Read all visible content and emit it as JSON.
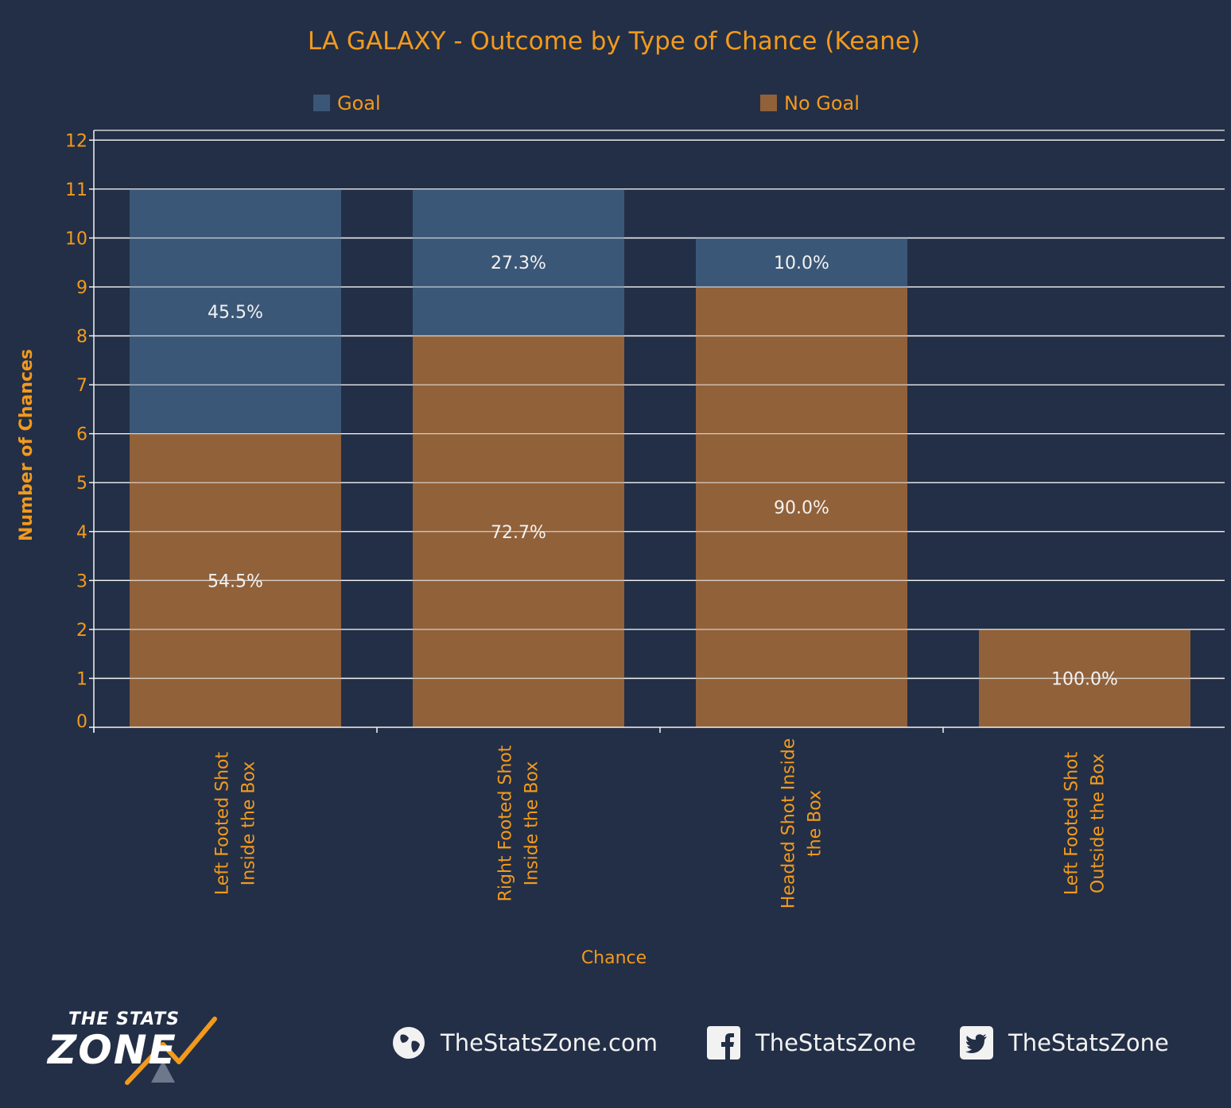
{
  "chart_data": {
    "type": "bar",
    "stacked": true,
    "title": "LA GALAXY - Outcome by Type of Chance (Keane)",
    "xlabel": "Chance",
    "ylabel": "Number of Chances",
    "ylim": [
      0,
      12
    ],
    "yticks": [
      "0",
      "1",
      "2",
      "3",
      "4",
      "5",
      "6",
      "7",
      "8",
      "9",
      "10",
      "11",
      "12"
    ],
    "grid": true,
    "legend_position": "top",
    "categories": [
      [
        "Left Footed Shot",
        "Inside the Box"
      ],
      [
        "Right Footed Shot",
        "Inside the Box"
      ],
      [
        "Headed Shot Inside",
        "the Box"
      ],
      [
        "Left Footed Shot",
        "Outside the Box"
      ]
    ],
    "series": [
      {
        "name": "No Goal",
        "color": "#91613a",
        "values": [
          6,
          8,
          9,
          2
        ],
        "labels": [
          "54.5%",
          "72.7%",
          "90.0%",
          "100.0%"
        ]
      },
      {
        "name": "Goal",
        "color": "#3b5778",
        "values": [
          5,
          3,
          1,
          0
        ],
        "labels": [
          "45.5%",
          "27.3%",
          "10.0%",
          ""
        ]
      }
    ],
    "legend": [
      {
        "name": "Goal",
        "color": "#3b5778"
      },
      {
        "name": "No Goal",
        "color": "#91613a"
      }
    ]
  },
  "footer": {
    "logo_top": "THE STATS",
    "logo_bottom": "ZONE",
    "website": "TheStatsZone.com",
    "facebook": "TheStatsZone",
    "twitter": "TheStatsZone"
  },
  "icons": {
    "website": "globe-icon",
    "facebook": "facebook-icon",
    "twitter": "twitter-icon"
  }
}
